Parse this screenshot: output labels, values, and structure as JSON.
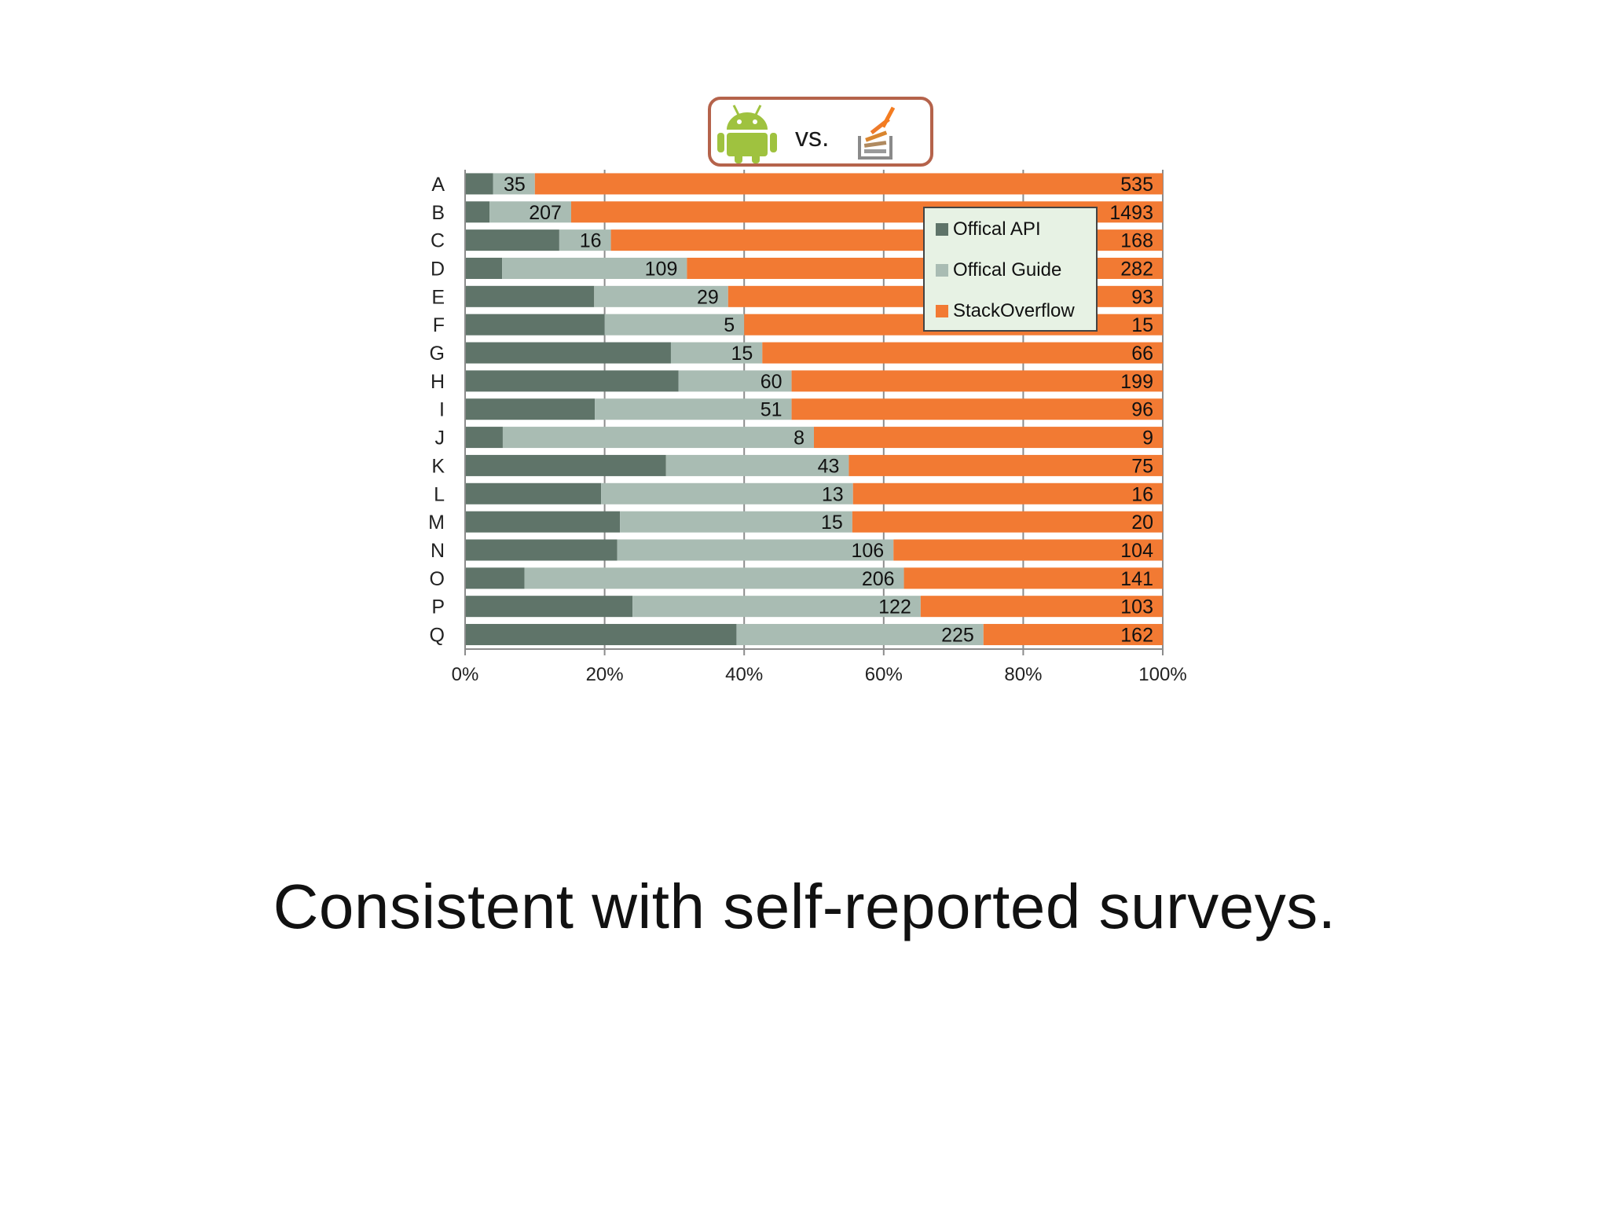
{
  "header_badge": {
    "text": "vs.",
    "android_icon": "android-robot-icon",
    "stackoverflow_icon": "stackoverflow-logo-icon",
    "border_color": "#b5634b"
  },
  "chart_data": {
    "type": "bar",
    "orientation": "horizontal",
    "stacked": true,
    "normalized_percent": true,
    "categories": [
      "A",
      "B",
      "C",
      "D",
      "E",
      "F",
      "G",
      "H",
      "I",
      "J",
      "K",
      "L",
      "M",
      "N",
      "O",
      "P",
      "Q"
    ],
    "series": [
      {
        "name": "Offical API",
        "color": "#5f7469",
        "share": [
          4.0,
          3.5,
          13.5,
          5.3,
          18.5,
          20.0,
          29.5,
          30.6,
          18.6,
          5.4,
          28.8,
          19.5,
          22.2,
          21.8,
          8.5,
          24.0,
          38.9
        ]
      },
      {
        "name": "Offical Guide",
        "color": "#a9bcb3",
        "labels": [
          "35",
          "207",
          "16",
          "109",
          "29",
          "5",
          "15",
          "60",
          "51",
          "8",
          "43",
          "13",
          "15",
          "106",
          "206",
          "122",
          "225"
        ],
        "share": [
          6.0,
          11.7,
          7.4,
          26.5,
          19.2,
          20.0,
          13.1,
          16.2,
          28.2,
          44.6,
          26.2,
          36.1,
          33.3,
          39.6,
          54.4,
          41.3,
          35.4
        ]
      },
      {
        "name": "StackOverflow",
        "color": "#f27a33",
        "labels": [
          "535",
          "1493",
          "168",
          "282",
          "93",
          "15",
          "66",
          "199",
          "96",
          "9",
          "75",
          "16",
          "20",
          "104",
          "141",
          "103",
          "162"
        ],
        "share": [
          90.0,
          84.8,
          79.1,
          68.2,
          62.3,
          60.0,
          57.4,
          53.2,
          53.2,
          50.0,
          45.0,
          44.4,
          44.5,
          38.6,
          37.1,
          34.7,
          25.7
        ]
      }
    ],
    "x_ticks": [
      "0%",
      "20%",
      "40%",
      "60%",
      "80%",
      "100%"
    ],
    "xlim": [
      0,
      100
    ],
    "grid": "vertical",
    "legend_placement": "top-right"
  },
  "caption": "Consistent with self-reported surveys."
}
